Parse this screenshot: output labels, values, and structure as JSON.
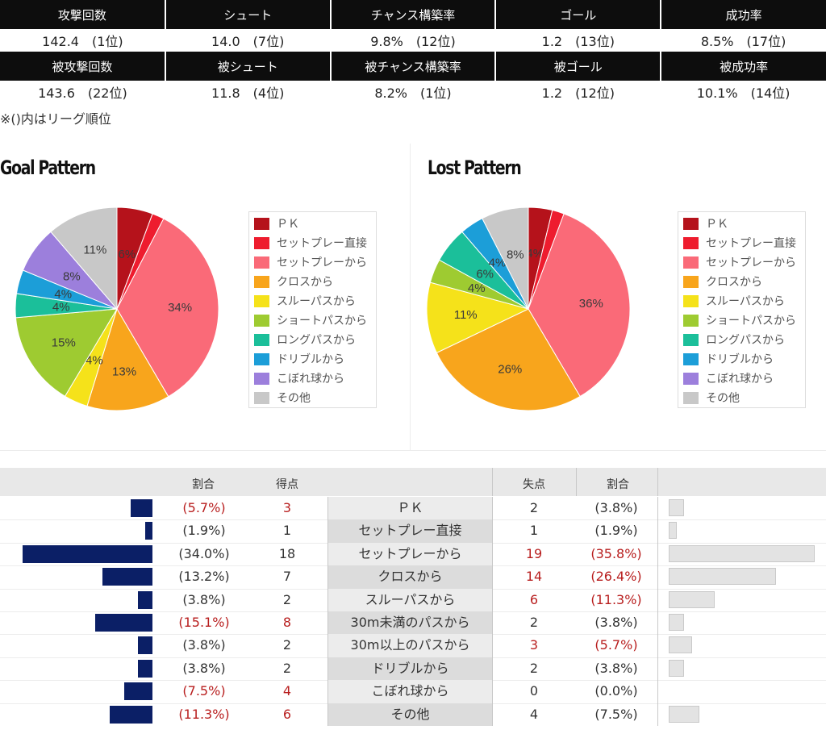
{
  "stats": {
    "attack_headers": [
      "攻撃回数",
      "シュート",
      "チャンス構築率",
      "ゴール",
      "成功率"
    ],
    "attack_values": [
      "142.4　(1位)",
      "14.0　(7位)",
      "9.8%　(12位)",
      "1.2　(13位)",
      "8.5%　(17位)"
    ],
    "defense_headers": [
      "被攻撃回数",
      "被シュート",
      "被チャンス構築率",
      "被ゴール",
      "被成功率"
    ],
    "defense_values": [
      "143.6　(22位)",
      "11.8　(4位)",
      "8.2%　(1位)",
      "1.2　(12位)",
      "10.1%　(14位)"
    ],
    "note": "※()内はリーグ順位"
  },
  "legend_items": [
    "ＰＫ",
    "セットプレー直接",
    "セットプレーから",
    "クロスから",
    "スルーパスから",
    "ショートパスから",
    "ロングパスから",
    "ドリブルから",
    "こぼれ球から",
    "その他"
  ],
  "colors": [
    "#b5121b",
    "#ee1c2e",
    "#fa6a78",
    "#f8a51c",
    "#f5e21a",
    "#9ecb31",
    "#1bbf9a",
    "#1c9ed8",
    "#9c7fdc",
    "#c8c8c8"
  ],
  "chart_data": [
    {
      "type": "pie",
      "title": "Goal Pattern",
      "categories": [
        "ＰＫ",
        "セットプレー直接",
        "セットプレーから",
        "クロスから",
        "スルーパスから",
        "ショートパスから",
        "ロングパスから",
        "ドリブルから",
        "こぼれ球から",
        "その他"
      ],
      "values": [
        5.7,
        1.9,
        34.0,
        13.2,
        3.8,
        15.1,
        3.8,
        3.8,
        7.5,
        11.3
      ],
      "labels": [
        "6%",
        "",
        "34%",
        "13%",
        "4%",
        "15%",
        "4%",
        "4%",
        "8%",
        "11%"
      ],
      "legend_position": "right"
    },
    {
      "type": "pie",
      "title": "Lost Pattern",
      "categories": [
        "ＰＫ",
        "セットプレー直接",
        "セットプレーから",
        "クロスから",
        "スルーパスから",
        "ショートパスから",
        "ロングパスから",
        "ドリブルから",
        "こぼれ球から",
        "その他"
      ],
      "values": [
        3.8,
        1.9,
        35.8,
        26.4,
        11.3,
        3.8,
        5.7,
        3.8,
        0.0,
        7.5
      ],
      "labels": [
        "4%",
        "",
        "36%",
        "26%",
        "11%",
        "4%",
        "6%",
        "4%",
        "",
        "8%"
      ],
      "legend_position": "right"
    },
    {
      "type": "table",
      "headers": {
        "left_ratio": "割合",
        "goals": "得点",
        "conceded": "失点",
        "right_ratio": "割合"
      },
      "rows": [
        {
          "category": "ＰＫ",
          "goals": 3,
          "goal_ratio": "(5.7%)",
          "goal_pct": 5.7,
          "goal_hl": true,
          "conceded": 2,
          "conc_ratio": "(3.8%)",
          "conc_pct": 3.8,
          "conc_hl": false
        },
        {
          "category": "セットプレー直接",
          "goals": 1,
          "goal_ratio": "(1.9%)",
          "goal_pct": 1.9,
          "goal_hl": false,
          "conceded": 1,
          "conc_ratio": "(1.9%)",
          "conc_pct": 1.9,
          "conc_hl": false
        },
        {
          "category": "セットプレーから",
          "goals": 18,
          "goal_ratio": "(34.0%)",
          "goal_pct": 34.0,
          "goal_hl": false,
          "conceded": 19,
          "conc_ratio": "(35.8%)",
          "conc_pct": 35.8,
          "conc_hl": true
        },
        {
          "category": "クロスから",
          "goals": 7,
          "goal_ratio": "(13.2%)",
          "goal_pct": 13.2,
          "goal_hl": false,
          "conceded": 14,
          "conc_ratio": "(26.4%)",
          "conc_pct": 26.4,
          "conc_hl": true
        },
        {
          "category": "スルーパスから",
          "goals": 2,
          "goal_ratio": "(3.8%)",
          "goal_pct": 3.8,
          "goal_hl": false,
          "conceded": 6,
          "conc_ratio": "(11.3%)",
          "conc_pct": 11.3,
          "conc_hl": true
        },
        {
          "category": "30m未満のパスから",
          "goals": 8,
          "goal_ratio": "(15.1%)",
          "goal_pct": 15.1,
          "goal_hl": true,
          "conceded": 2,
          "conc_ratio": "(3.8%)",
          "conc_pct": 3.8,
          "conc_hl": false
        },
        {
          "category": "30m以上のパスから",
          "goals": 2,
          "goal_ratio": "(3.8%)",
          "goal_pct": 3.8,
          "goal_hl": false,
          "conceded": 3,
          "conc_ratio": "(5.7%)",
          "conc_pct": 5.7,
          "conc_hl": true
        },
        {
          "category": "ドリブルから",
          "goals": 2,
          "goal_ratio": "(3.8%)",
          "goal_pct": 3.8,
          "goal_hl": false,
          "conceded": 2,
          "conc_ratio": "(3.8%)",
          "conc_pct": 3.8,
          "conc_hl": false
        },
        {
          "category": "こぼれ球から",
          "goals": 4,
          "goal_ratio": "(7.5%)",
          "goal_pct": 7.5,
          "goal_hl": true,
          "conceded": 0,
          "conc_ratio": "(0.0%)",
          "conc_pct": 0.0,
          "conc_hl": false
        },
        {
          "category": "その他",
          "goals": 6,
          "goal_ratio": "(11.3%)",
          "goal_pct": 11.3,
          "goal_hl": true,
          "conceded": 4,
          "conc_ratio": "(7.5%)",
          "conc_pct": 7.5,
          "conc_hl": false
        }
      ]
    }
  ]
}
